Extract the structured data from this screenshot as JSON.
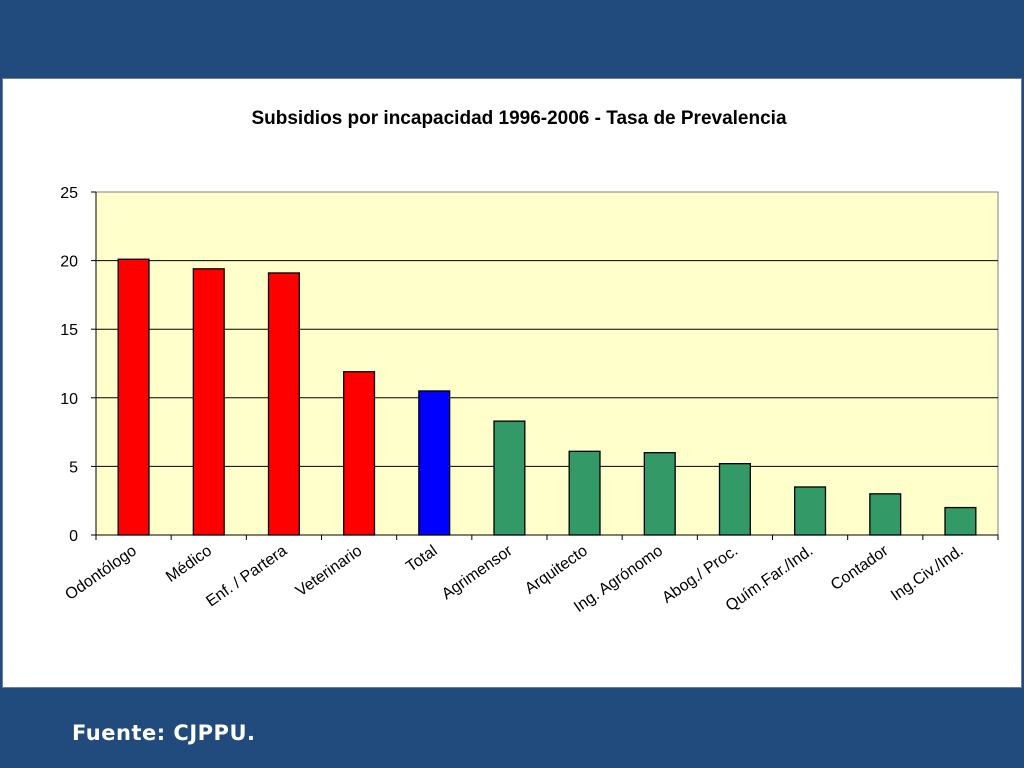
{
  "source_label": "Fuente: CJPPU.",
  "colors": {
    "background": "#214b7c",
    "plot_area": "#ffffcc",
    "red": "#ff0000",
    "blue": "#0000ff",
    "green": "#339966"
  },
  "chart_data": {
    "type": "bar",
    "title": "Subsidios por incapacidad 1996-2006 - Tasa de Prevalencia",
    "xlabel": "",
    "ylabel": "",
    "ylim": [
      0,
      25
    ],
    "yticks": [
      0,
      5,
      10,
      15,
      20,
      25
    ],
    "grid": true,
    "legend": "none",
    "categories": [
      "Odontólogo",
      "Médico",
      "Enf. / Partera",
      "Veterinario",
      "Total",
      "Agrimensor",
      "Arquitecto",
      "Ing. Agrónomo",
      "Abog./ Proc.",
      "Quím.Far./Ind.",
      "Contador",
      "Ing.Civ./Ind."
    ],
    "values": [
      20.1,
      19.4,
      19.1,
      11.9,
      10.5,
      8.3,
      6.1,
      6.0,
      5.2,
      3.5,
      3.0,
      2.0
    ],
    "bar_colors": [
      "red",
      "red",
      "red",
      "red",
      "blue",
      "green",
      "green",
      "green",
      "green",
      "green",
      "green",
      "green"
    ]
  }
}
